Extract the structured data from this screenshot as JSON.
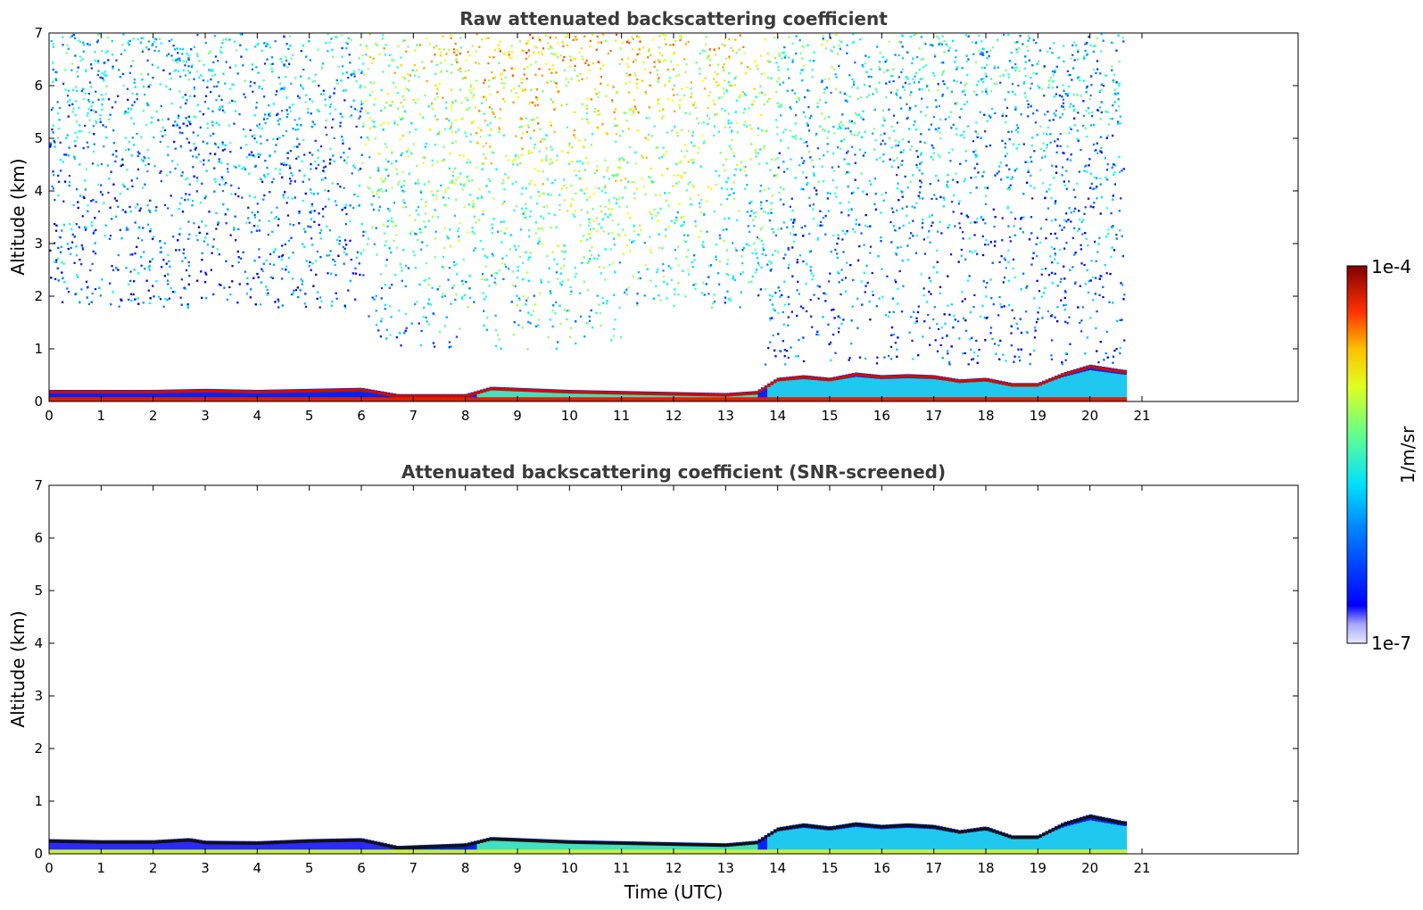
{
  "chart_data": [
    {
      "type": "heatmap",
      "title": "Raw attenuated backscattering coefficient",
      "xlabel": "",
      "ylabel": "Altitude (km)",
      "xlim": [
        0,
        24
      ],
      "ylim": [
        0,
        7
      ],
      "x_ticks": [
        "0",
        "1",
        "2",
        "3",
        "4",
        "5",
        "6",
        "7",
        "8",
        "9",
        "10",
        "11",
        "12",
        "13",
        "14",
        "15",
        "16",
        "17",
        "18",
        "19",
        "20",
        "21"
      ],
      "y_ticks": [
        "0",
        "1",
        "2",
        "3",
        "4",
        "5",
        "6",
        "7"
      ],
      "data_end_time": 20.65,
      "screened": false,
      "layer_top_km": [
        [
          0,
          0.22
        ],
        [
          1,
          0.22
        ],
        [
          2,
          0.22
        ],
        [
          3,
          0.24
        ],
        [
          4,
          0.22
        ],
        [
          5,
          0.24
        ],
        [
          6,
          0.26
        ],
        [
          6.7,
          0.14
        ],
        [
          8,
          0.14
        ],
        [
          8.5,
          0.28
        ],
        [
          9,
          0.26
        ],
        [
          10,
          0.22
        ],
        [
          11,
          0.2
        ],
        [
          12,
          0.18
        ],
        [
          13,
          0.16
        ],
        [
          13.6,
          0.2
        ],
        [
          14,
          0.45
        ],
        [
          14.5,
          0.5
        ],
        [
          15,
          0.45
        ],
        [
          15.5,
          0.55
        ],
        [
          16,
          0.5
        ],
        [
          16.5,
          0.52
        ],
        [
          17,
          0.5
        ],
        [
          17.5,
          0.42
        ],
        [
          18,
          0.45
        ],
        [
          18.5,
          0.35
        ],
        [
          19,
          0.35
        ],
        [
          19.5,
          0.55
        ],
        [
          20,
          0.7
        ],
        [
          20.65,
          0.6
        ]
      ]
    },
    {
      "type": "heatmap",
      "title": "Attenuated backscattering coefficient (SNR-screened)",
      "xlabel": "Time (UTC)",
      "ylabel": "Altitude (km)",
      "xlim": [
        0,
        24
      ],
      "ylim": [
        0,
        7
      ],
      "x_ticks": [
        "0",
        "1",
        "2",
        "3",
        "4",
        "5",
        "6",
        "7",
        "8",
        "9",
        "10",
        "11",
        "12",
        "13",
        "14",
        "15",
        "16",
        "17",
        "18",
        "19",
        "20",
        "21"
      ],
      "y_ticks": [
        "0",
        "1",
        "2",
        "3",
        "4",
        "5",
        "6",
        "7"
      ],
      "data_end_time": 20.65,
      "screened": true,
      "layer_top_km": [
        [
          0,
          0.28
        ],
        [
          1,
          0.26
        ],
        [
          2,
          0.26
        ],
        [
          2.7,
          0.3
        ],
        [
          3,
          0.25
        ],
        [
          4,
          0.24
        ],
        [
          5,
          0.28
        ],
        [
          6,
          0.3
        ],
        [
          6.7,
          0.15
        ],
        [
          8,
          0.2
        ],
        [
          8.5,
          0.32
        ],
        [
          9,
          0.3
        ],
        [
          10,
          0.26
        ],
        [
          11,
          0.24
        ],
        [
          12,
          0.22
        ],
        [
          13,
          0.2
        ],
        [
          13.6,
          0.25
        ],
        [
          14,
          0.5
        ],
        [
          14.5,
          0.58
        ],
        [
          15,
          0.52
        ],
        [
          15.5,
          0.6
        ],
        [
          16,
          0.55
        ],
        [
          16.5,
          0.58
        ],
        [
          17,
          0.55
        ],
        [
          17.5,
          0.45
        ],
        [
          18,
          0.52
        ],
        [
          18.5,
          0.35
        ],
        [
          19,
          0.35
        ],
        [
          19.5,
          0.6
        ],
        [
          20,
          0.75
        ],
        [
          20.65,
          0.62
        ]
      ]
    }
  ],
  "colorbar": {
    "label": "1/m/sr",
    "max_label": "1e-4",
    "min_label": "1e-7",
    "range": [
      1e-07,
      0.0001
    ],
    "scale": "log",
    "colormap": "jet"
  }
}
